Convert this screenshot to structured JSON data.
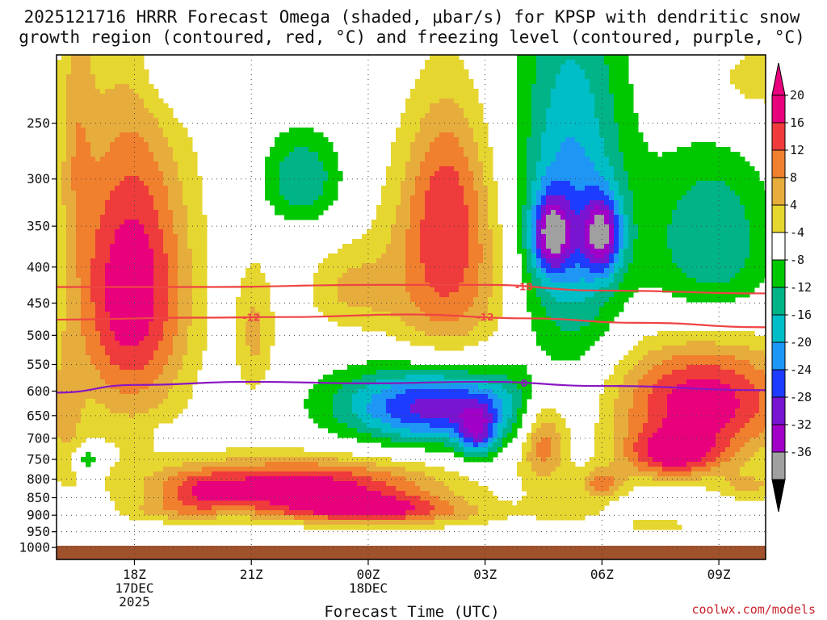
{
  "title_line1": "2025121716 HRRR Forecast Omega (shaded, μbar/s) for KPSP with dendritic snow",
  "title_line2": "growth region (contoured, red, °C) and freezing level (contoured, purple, °C)",
  "xlabel": "Forecast Time (UTC)",
  "credit": "coolwx.com/models",
  "chart_data": {
    "type": "heatmap",
    "x_unit": "forecast hour UTC",
    "x_range_hours": [
      -2.0,
      16.2
    ],
    "y_axis": "pressure (hPa)",
    "y_range": [
      1000,
      200
    ],
    "y_ticks": [
      "250",
      "300",
      "350",
      "400",
      "450",
      "500",
      "550",
      "600",
      "650",
      "700",
      "750",
      "800",
      "850",
      "900",
      "950",
      "1000"
    ],
    "x_ticks": [
      {
        "hour": 0,
        "label": "18Z",
        "sub1": "17DEC",
        "sub2": "2025"
      },
      {
        "hour": 3,
        "label": "21Z",
        "sub1": "",
        "sub2": ""
      },
      {
        "hour": 6,
        "label": "00Z",
        "sub1": "18DEC",
        "sub2": ""
      },
      {
        "hour": 9,
        "label": "03Z",
        "sub1": "",
        "sub2": ""
      },
      {
        "hour": 12,
        "label": "06Z",
        "sub1": "",
        "sub2": ""
      },
      {
        "hour": 15,
        "label": "09Z",
        "sub1": "",
        "sub2": ""
      }
    ],
    "colorbar": {
      "labels": [
        "20",
        "16",
        "12",
        "8",
        "4",
        "-4",
        "-8",
        "-12",
        "-16",
        "-20",
        "-24",
        "-28",
        "-32",
        "-36"
      ],
      "bin_colors_top_to_bottom": [
        "#e8007d",
        "#ef3b3b",
        "#f07f2e",
        "#e7ad3c",
        "#e6d630",
        "#ffffff",
        "#00c800",
        "#00b487",
        "#00bec8",
        "#1e96f5",
        "#1e3cff",
        "#7814d2",
        "#a000c8",
        "#a0a0a0"
      ],
      "over_color": "#e8007d",
      "under_color": "#000000"
    },
    "omega_blobs": [
      {
        "hour": -0.1,
        "p": 430,
        "rx": 1.5,
        "ry": 210,
        "value": 24
      },
      {
        "hour": 4.2,
        "p": 820,
        "rx": 3.6,
        "ry": 75,
        "value": 23
      },
      {
        "hour": 5.8,
        "p": 880,
        "rx": 2.2,
        "ry": 40,
        "value": 14
      },
      {
        "hour": 1.8,
        "p": 840,
        "rx": 1.0,
        "ry": 55,
        "value": 8
      },
      {
        "hour": 8.0,
        "p": 410,
        "rx": 1.6,
        "ry": 140,
        "value": 16
      },
      {
        "hour": 8.0,
        "p": 300,
        "rx": 1.0,
        "ry": 90,
        "value": 9
      },
      {
        "hour": 5.5,
        "p": 430,
        "rx": 1.1,
        "ry": 60,
        "value": 8
      },
      {
        "hour": 3.1,
        "p": 500,
        "rx": 0.5,
        "ry": 110,
        "value": 9
      },
      {
        "hour": 14.6,
        "p": 620,
        "rx": 2.4,
        "ry": 120,
        "value": 23
      },
      {
        "hour": 13.8,
        "p": 740,
        "rx": 1.3,
        "ry": 60,
        "value": 18
      },
      {
        "hour": 15.8,
        "p": 820,
        "rx": 0.8,
        "ry": 40,
        "value": 8
      },
      {
        "hour": 10.5,
        "p": 700,
        "rx": 0.6,
        "ry": 110,
        "value": 15
      },
      {
        "hour": 12.0,
        "p": 810,
        "rx": 0.6,
        "ry": 40,
        "value": 13
      },
      {
        "hour": -1.5,
        "p": 250,
        "rx": 0.45,
        "ry": 120,
        "value": 7
      },
      {
        "hour": -1.8,
        "p": 660,
        "rx": 0.5,
        "ry": 140,
        "value": 8
      },
      {
        "hour": 0.8,
        "p": 890,
        "rx": 1.2,
        "ry": 30,
        "value": 6
      },
      {
        "hour": 7.3,
        "p": 900,
        "rx": 2.5,
        "ry": 40,
        "value": 6
      },
      {
        "hour": 11.2,
        "p": 880,
        "rx": 1.0,
        "ry": 40,
        "value": 6
      },
      {
        "hour": 13.4,
        "p": 930,
        "rx": 1.0,
        "ry": 25,
        "value": 6
      },
      {
        "hour": 15.8,
        "p": 220,
        "rx": 1.8,
        "ry": 40,
        "value": 6
      },
      {
        "hour": 4.3,
        "p": 300,
        "rx": 1.0,
        "ry": 45,
        "value": -12
      },
      {
        "hour": 1.0,
        "p": 200,
        "rx": 0.9,
        "ry": 40,
        "value": -7
      },
      {
        "hour": 7.7,
        "p": 630,
        "rx": 2.4,
        "ry": 80,
        "value": -27
      },
      {
        "hour": 8.8,
        "p": 690,
        "rx": 0.5,
        "ry": 60,
        "value": -17
      },
      {
        "hour": 11.2,
        "p": 330,
        "rx": 1.4,
        "ry": 200,
        "value": -18
      },
      {
        "hour": 10.7,
        "p": 360,
        "rx": 0.5,
        "ry": 45,
        "value": -23
      },
      {
        "hour": 12.0,
        "p": 360,
        "rx": 0.5,
        "ry": 45,
        "value": -23
      },
      {
        "hour": 14.8,
        "p": 370,
        "rx": 1.6,
        "ry": 110,
        "value": -12
      },
      {
        "hour": -1.2,
        "p": 750,
        "rx": 0.35,
        "ry": 28,
        "value": -10
      },
      {
        "hour": 0.8,
        "p": 700,
        "rx": 0.25,
        "ry": 28,
        "value": -5
      }
    ],
    "contours": [
      {
        "value": "-18",
        "color": "#ef4444",
        "points": [
          [
            -2,
            427
          ],
          [
            2,
            427
          ],
          [
            6,
            424
          ],
          [
            9,
            424
          ],
          [
            12,
            432
          ],
          [
            16.2,
            436
          ]
        ],
        "label_at": 10.0
      },
      {
        "value": "-12",
        "color": "#ef4444",
        "points": [
          [
            -2,
            475
          ],
          [
            1.5,
            472
          ],
          [
            4,
            471
          ],
          [
            7,
            467
          ],
          [
            10,
            473
          ],
          [
            13,
            480
          ],
          [
            16.2,
            487
          ]
        ],
        "label_at_list": [
          3.0,
          9.0
        ]
      },
      {
        "value": "0",
        "color": "#8a16c2",
        "points": [
          [
            -2,
            603
          ],
          [
            0,
            588
          ],
          [
            3,
            582
          ],
          [
            6,
            585
          ],
          [
            9,
            582
          ],
          [
            12,
            590
          ],
          [
            16.2,
            598
          ]
        ],
        "label_at": 10.0
      }
    ]
  }
}
